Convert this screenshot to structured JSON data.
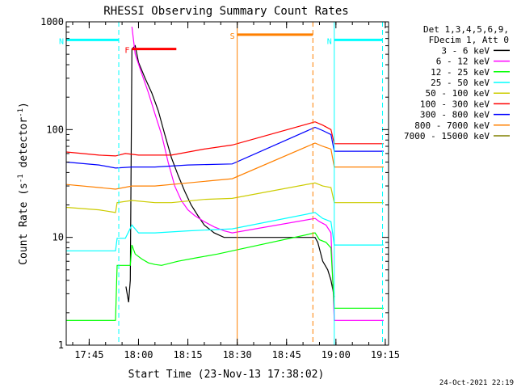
{
  "chart_data": {
    "type": "line",
    "title": "RHESSI Observing Summary Count Rates",
    "xlabel": "Start Time (23-Nov-13 17:38:02)",
    "ylabel_pre": "Count Rate (s",
    "ylabel_mid": " detector",
    "ylabel_post": ")",
    "ylabel_sup": "-1",
    "ylog": true,
    "ylim": [
      1,
      1000
    ],
    "xlim": [
      "17:38:02",
      "19:16:00"
    ],
    "yticks": [
      {
        "v": 1,
        "label": "1"
      },
      {
        "v": 10,
        "label": "10"
      },
      {
        "v": 100,
        "label": "100"
      },
      {
        "v": 1000,
        "label": "1000"
      }
    ],
    "xticks": [
      {
        "t": "17:45",
        "label": "17:45"
      },
      {
        "t": "18:00",
        "label": "18:00"
      },
      {
        "t": "18:15",
        "label": "18:15"
      },
      {
        "t": "18:30",
        "label": "18:30"
      },
      {
        "t": "18:45",
        "label": "18:45"
      },
      {
        "t": "19:00",
        "label": "19:00"
      },
      {
        "t": "19:15",
        "label": "19:15"
      }
    ],
    "legend_header": [
      "Det 1,3,4,5,6,9,",
      "FDecim 1, Att 0"
    ],
    "legend_placement": "right",
    "series": [
      {
        "name": "3 - 6 keV",
        "color": "#000000",
        "points": [
          [
            "17:56:10",
            3.5
          ],
          [
            "17:57:00",
            2.5
          ],
          [
            "17:57:30",
            4
          ],
          [
            "17:58:00",
            560
          ],
          [
            "17:59:00",
            600
          ],
          [
            "18:00:00",
            420
          ],
          [
            "18:02:00",
            300
          ],
          [
            "18:04:00",
            220
          ],
          [
            "18:06:00",
            150
          ],
          [
            "18:08:00",
            90
          ],
          [
            "18:10:00",
            55
          ],
          [
            "18:12:00",
            38
          ],
          [
            "18:14:00",
            27
          ],
          [
            "18:16:00",
            20
          ],
          [
            "18:18:00",
            16
          ],
          [
            "18:20:00",
            13
          ],
          [
            "18:23:00",
            11
          ],
          [
            "18:26:00",
            10
          ],
          [
            "18:28:30",
            10
          ],
          [
            "18:53:40",
            10
          ],
          [
            "18:54:30",
            9
          ],
          [
            "18:56:00",
            6
          ],
          [
            "18:57:30",
            5
          ],
          [
            "18:58:30",
            4
          ],
          [
            "18:59:30",
            2.8
          ]
        ]
      },
      {
        "name": "6 - 12 keV",
        "color": "#ff00ff",
        "points": [
          [
            "17:58:00",
            900
          ],
          [
            "17:59:00",
            500
          ],
          [
            "18:01:00",
            330
          ],
          [
            "18:03:00",
            220
          ],
          [
            "18:05:00",
            140
          ],
          [
            "18:07:00",
            90
          ],
          [
            "18:09:00",
            50
          ],
          [
            "18:11:00",
            30
          ],
          [
            "18:13:00",
            22
          ],
          [
            "18:15:00",
            18
          ],
          [
            "18:17:00",
            16
          ],
          [
            "18:20:00",
            14
          ],
          [
            "18:23:00",
            12.5
          ],
          [
            "18:26:00",
            11.5
          ],
          [
            "18:28:30",
            11
          ],
          [
            "18:53:40",
            15
          ],
          [
            "18:55:00",
            14
          ],
          [
            "18:57:00",
            13
          ],
          [
            "18:58:30",
            11
          ],
          [
            "18:59:30",
            1.7
          ],
          [
            "19:14:30",
            1.7
          ]
        ]
      },
      {
        "name": "12 - 25 keV",
        "color": "#00ff00",
        "points": [
          [
            "17:38:02",
            1.7
          ],
          [
            "17:53:00",
            1.7
          ],
          [
            "17:53:30",
            5.5
          ],
          [
            "17:56:00",
            5.5
          ],
          [
            "17:57:30",
            5.5
          ],
          [
            "17:58:00",
            8.5
          ],
          [
            "17:59:00",
            7
          ],
          [
            "18:01:00",
            6.3
          ],
          [
            "18:03:00",
            5.8
          ],
          [
            "18:05:00",
            5.6
          ],
          [
            "18:07:00",
            5.5
          ],
          [
            "18:12:00",
            6
          ],
          [
            "18:18:00",
            6.5
          ],
          [
            "18:24:00",
            7
          ],
          [
            "18:28:30",
            7.5
          ],
          [
            "18:53:40",
            11
          ],
          [
            "18:55:00",
            9.5
          ],
          [
            "18:57:00",
            9
          ],
          [
            "18:58:30",
            8
          ],
          [
            "18:59:30",
            2.2
          ],
          [
            "19:14:30",
            2.2
          ]
        ]
      },
      {
        "name": "25 - 50 keV",
        "color": "#00ffff",
        "points": [
          [
            "17:38:02",
            7.5
          ],
          [
            "17:53:00",
            7.5
          ],
          [
            "17:53:30",
            9.8
          ],
          [
            "17:56:00",
            9.8
          ],
          [
            "17:58:00",
            13
          ],
          [
            "18:00:00",
            11
          ],
          [
            "18:05:00",
            11
          ],
          [
            "18:15:00",
            11.5
          ],
          [
            "18:28:30",
            12
          ],
          [
            "18:53:40",
            17
          ],
          [
            "18:56:00",
            15
          ],
          [
            "18:58:30",
            14
          ],
          [
            "18:59:30",
            8.5
          ],
          [
            "19:14:30",
            8.5
          ]
        ]
      },
      {
        "name": "50 - 100 keV",
        "color": "#cccc00",
        "points": [
          [
            "17:38:02",
            19
          ],
          [
            "17:48:00",
            18
          ],
          [
            "17:53:00",
            17
          ],
          [
            "17:53:30",
            21
          ],
          [
            "17:58:00",
            22
          ],
          [
            "18:05:00",
            21
          ],
          [
            "18:10:00",
            21
          ],
          [
            "18:20:00",
            22.5
          ],
          [
            "18:28:30",
            23
          ],
          [
            "18:53:40",
            32
          ],
          [
            "18:56:00",
            30
          ],
          [
            "18:58:30",
            29
          ],
          [
            "18:59:30",
            21
          ],
          [
            "19:14:30",
            21
          ]
        ]
      },
      {
        "name": "100 - 300 keV",
        "color": "#ff0000",
        "points": [
          [
            "17:38:02",
            62
          ],
          [
            "17:48:00",
            58
          ],
          [
            "17:53:00",
            57
          ],
          [
            "17:56:00",
            60
          ],
          [
            "18:00:00",
            58
          ],
          [
            "18:10:00",
            58
          ],
          [
            "18:20:00",
            66
          ],
          [
            "18:28:30",
            72
          ],
          [
            "18:53:40",
            118
          ],
          [
            "18:56:00",
            110
          ],
          [
            "18:58:30",
            100
          ],
          [
            "18:59:30",
            74
          ],
          [
            "19:14:30",
            74
          ]
        ]
      },
      {
        "name": "300 - 800 keV",
        "color": "#0000ff",
        "points": [
          [
            "17:38:02",
            50
          ],
          [
            "17:48:00",
            47
          ],
          [
            "17:53:00",
            44
          ],
          [
            "17:58:00",
            45
          ],
          [
            "18:05:00",
            45
          ],
          [
            "18:15:00",
            47
          ],
          [
            "18:28:30",
            48
          ],
          [
            "18:53:40",
            105
          ],
          [
            "18:56:00",
            98
          ],
          [
            "18:58:30",
            90
          ],
          [
            "18:59:30",
            63
          ],
          [
            "19:14:30",
            63
          ]
        ]
      },
      {
        "name": "800 - 7000 keV",
        "color": "#ff8000",
        "points": [
          [
            "17:38:02",
            31
          ],
          [
            "17:48:00",
            29
          ],
          [
            "17:53:00",
            28
          ],
          [
            "17:58:00",
            30
          ],
          [
            "18:05:00",
            30
          ],
          [
            "18:15:00",
            32
          ],
          [
            "18:28:30",
            35
          ],
          [
            "18:53:40",
            75
          ],
          [
            "18:56:00",
            70
          ],
          [
            "18:58:30",
            66
          ],
          [
            "18:59:30",
            45
          ],
          [
            "19:14:30",
            45
          ]
        ]
      },
      {
        "name": "7000 - 15000 keV",
        "color": "#808000",
        "points": []
      }
    ],
    "annotations": [
      {
        "type": "attenuator_segment",
        "label": "N",
        "color": "#00ffff",
        "from": "17:38:02",
        "to": "17:54:00",
        "y": 680
      },
      {
        "type": "attenuator_segment",
        "label": "N",
        "color": "#00ffff",
        "from": "18:59:30",
        "to": "19:14:10",
        "y": 680
      },
      {
        "type": "attenuator_segment",
        "label": "F",
        "color": "#ff0000",
        "from": "17:58:00",
        "to": "18:11:30",
        "y": 560
      },
      {
        "type": "attenuator_segment",
        "label": "S",
        "color": "#ff8000",
        "from": "18:30:00",
        "to": "18:53:00",
        "y": 760
      },
      {
        "type": "vline",
        "t": "17:54:00",
        "color": "#00ffff",
        "dash": true
      },
      {
        "type": "vline",
        "t": "19:14:10",
        "color": "#00ffff",
        "dash": true
      },
      {
        "type": "vline",
        "t": "18:59:30",
        "color": "#00ffff",
        "dash": false
      },
      {
        "type": "vline",
        "t": "18:30:00",
        "color": "#ff8000",
        "dash": false
      },
      {
        "type": "vline",
        "t": "18:53:00",
        "color": "#ff8000",
        "dash": true
      }
    ],
    "grid": false
  },
  "footer_date": "24-Oct-2021 22:19"
}
